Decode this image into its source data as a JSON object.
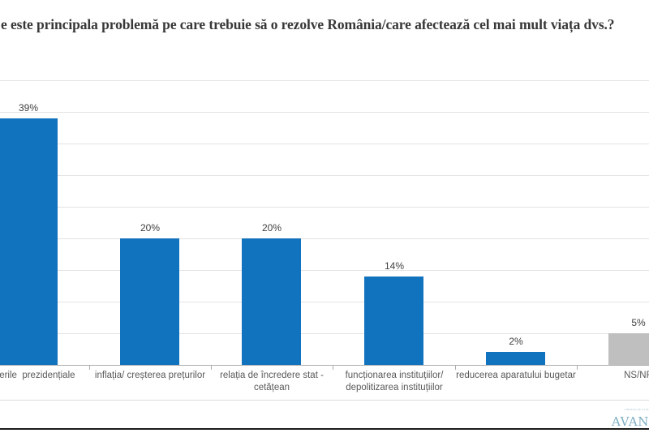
{
  "title": "e este principala problemă pe care trebuie să o rezolve România/care afectează cel mai mult viața dvs.?",
  "chart_data": {
    "type": "bar",
    "title": "e este principala problemă pe care trebuie să o rezolve România/care afectează cel mai mult viața dvs.?",
    "categories": [
      "alegerile  prezidențiale",
      "inflația/ creșterea prețurilor",
      "relația de încredere stat -\ncetățean",
      "funcționarea instituțiilor/\ndepolitizarea instituțiilor",
      "reducerea aparatului bugetar",
      "NS/NR"
    ],
    "values": [
      39,
      20,
      20,
      14,
      2,
      5
    ],
    "value_labels": [
      "39%",
      "20%",
      "20%",
      "14%",
      "2%",
      "5%"
    ],
    "bar_colors": [
      "#1172bd",
      "#1172bd",
      "#1172bd",
      "#1172bd",
      "#1172bd",
      "#bfbfbf"
    ],
    "xlabel": "",
    "ylabel": "",
    "ylim": [
      0,
      45
    ],
    "gridline_step": 5,
    "grid": true,
    "legend_position": "none"
  },
  "colors": {
    "bar_blue": "#1172bd",
    "bar_gray": "#bfbfbf",
    "gridline": "#e3e3e3",
    "axis": "#adadad",
    "title_text": "#383838",
    "label_text": "#595959",
    "logo_teal": "#7fafc4"
  },
  "footer": {
    "logo_text": "AVANGARDE",
    "logo_tagline": "GRUPUL DE STUDII SOCIO-COMPORTAMENTALE"
  }
}
